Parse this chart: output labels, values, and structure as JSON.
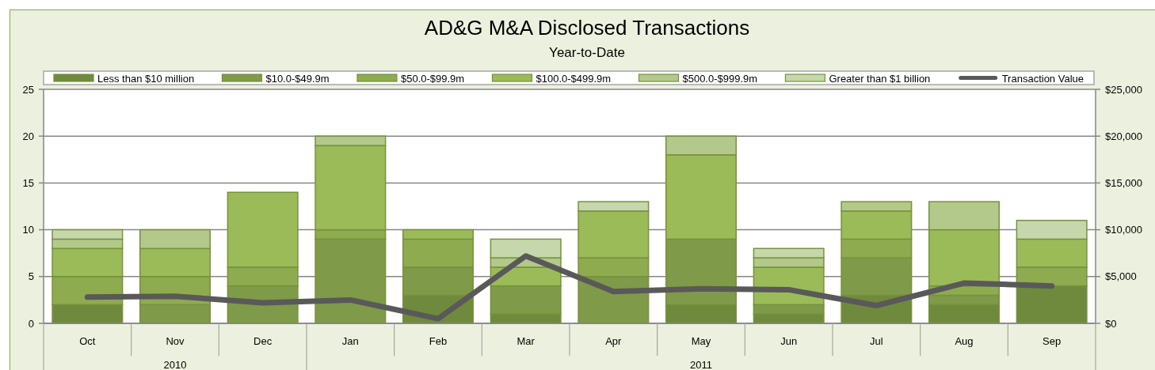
{
  "chart_data": {
    "type": "bar",
    "title": "AD&G M&A Disclosed Transactions",
    "subtitle": "Year-to-Date",
    "categories": [
      "Oct",
      "Nov",
      "Dec",
      "Jan",
      "Feb",
      "Mar",
      "Apr",
      "May",
      "Jun",
      "Jul",
      "Aug",
      "Sep"
    ],
    "stacked": true,
    "series": [
      {
        "name": "Less than $10 million",
        "color": "#6f8a3d",
        "values": [
          2,
          0,
          0,
          0,
          3,
          1,
          0,
          2,
          1,
          3,
          2,
          4
        ]
      },
      {
        "name": "$10.0-$49.9m",
        "color": "#7f9a48",
        "values": [
          0,
          2,
          4,
          9,
          3,
          3,
          5,
          7,
          1,
          4,
          1,
          0
        ]
      },
      {
        "name": "$50.0-$99.9m",
        "color": "#8eab50",
        "values": [
          3,
          3,
          2,
          1,
          3,
          0,
          2,
          0,
          0,
          2,
          1,
          2
        ]
      },
      {
        "name": "$100.0-$499.9m",
        "color": "#9bbb59",
        "values": [
          3,
          3,
          8,
          9,
          1,
          2,
          5,
          9,
          4,
          3,
          6,
          3
        ]
      },
      {
        "name": "$500.0-$999.9m",
        "color": "#b3c98b",
        "values": [
          1,
          2,
          0,
          1,
          0,
          1,
          0,
          2,
          1,
          1,
          3,
          0
        ]
      },
      {
        "name": "Greater than $1 billion",
        "color": "#c6d7ab",
        "values": [
          1,
          0,
          0,
          0,
          0,
          2,
          1,
          0,
          1,
          0,
          0,
          2
        ]
      },
      {
        "name": "Transaction Value",
        "type": "line",
        "axis": "y2",
        "color": "#595959",
        "values": [
          2800,
          2900,
          2200,
          2500,
          500,
          7200,
          3400,
          3700,
          3600,
          1900,
          4300,
          4000
        ]
      }
    ],
    "ylim": [
      0,
      25
    ],
    "yticks": [
      0,
      5,
      10,
      15,
      20,
      25
    ],
    "y2lim": [
      0,
      25000
    ],
    "y2ticks": [
      {
        "value": 0,
        "label": "$0"
      },
      {
        "value": 5000,
        "label": "$5,000"
      },
      {
        "value": 10000,
        "label": "$10,000"
      },
      {
        "value": 15000,
        "label": "$15,000"
      },
      {
        "value": 20000,
        "label": "$20,000"
      },
      {
        "value": 25000,
        "label": "$25,000"
      }
    ],
    "grid": "y",
    "legend": "top",
    "annotations": [
      "2010",
      "2011"
    ]
  }
}
